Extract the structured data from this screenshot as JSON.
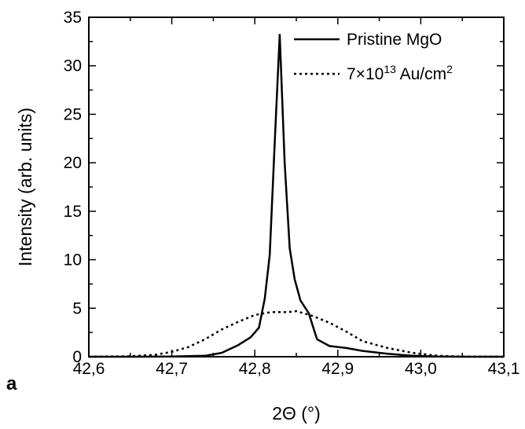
{
  "chart_data": {
    "type": "line",
    "panel_label": "a",
    "xlabel": "2Θ (°)",
    "ylabel": "Intensity (arb. units)",
    "xlim": [
      42.6,
      43.1
    ],
    "ylim": [
      0,
      35
    ],
    "x_ticks": [
      42.6,
      42.7,
      42.8,
      42.9,
      43.0,
      43.1
    ],
    "x_tick_labels": [
      "42,6",
      "42,7",
      "42,8",
      "42,9",
      "43,0",
      "43,1"
    ],
    "y_ticks": [
      0,
      5,
      10,
      15,
      20,
      25,
      30,
      35
    ],
    "y_tick_labels": [
      "0",
      "5",
      "10",
      "15",
      "20",
      "25",
      "30",
      "35"
    ],
    "legend_position": "top-right",
    "series": [
      {
        "name": "Pristine MgO",
        "style": "solid",
        "color": "#000000",
        "x": [
          42.6,
          42.65,
          42.7,
          42.74,
          42.76,
          42.78,
          42.795,
          42.805,
          42.812,
          42.818,
          42.824,
          42.83,
          42.836,
          42.842,
          42.848,
          42.855,
          42.865,
          42.875,
          42.89,
          42.91,
          42.93,
          42.96,
          42.99,
          43.02,
          43.05,
          43.1
        ],
        "y": [
          0,
          0,
          0.02,
          0.1,
          0.4,
          1.2,
          2.0,
          3.0,
          6.0,
          10.5,
          22.0,
          33.2,
          20.0,
          11.2,
          8.0,
          5.8,
          4.5,
          1.8,
          1.1,
          0.9,
          0.6,
          0.3,
          0.1,
          0.02,
          0,
          0
        ]
      },
      {
        "name": "7×10¹³ Au/cm²",
        "style": "dotted",
        "color": "#000000",
        "x": [
          42.6,
          42.65,
          42.68,
          42.7,
          42.72,
          42.74,
          42.76,
          42.78,
          42.8,
          42.82,
          42.84,
          42.85,
          42.87,
          42.89,
          42.91,
          42.93,
          42.96,
          42.99,
          43.02,
          43.05,
          43.1
        ],
        "y": [
          0,
          0.05,
          0.2,
          0.5,
          1.0,
          1.8,
          2.8,
          3.6,
          4.3,
          4.6,
          4.6,
          4.7,
          4.2,
          3.5,
          2.6,
          1.6,
          0.9,
          0.4,
          0.1,
          0.02,
          0
        ]
      }
    ]
  }
}
